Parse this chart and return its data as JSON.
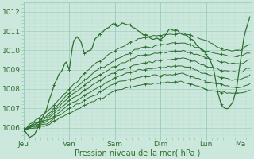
{
  "xlabel": "Pression niveau de la mer( hPa )",
  "ylim": [
    1005.5,
    1012.5
  ],
  "yticks": [
    1006,
    1007,
    1008,
    1009,
    1010,
    1011,
    1012
  ],
  "bg_color": "#cce8dc",
  "grid_minor_color": "#b8ddd0",
  "grid_major_color": "#9ccebe",
  "line_color": "#2d6e2d",
  "x_day_labels": [
    "Jeu",
    "Ven",
    "Sam",
    "Dim",
    "Lun",
    "Ma"
  ],
  "x_day_positions": [
    0,
    24,
    48,
    72,
    96,
    114
  ],
  "xlim": [
    0,
    120
  ]
}
